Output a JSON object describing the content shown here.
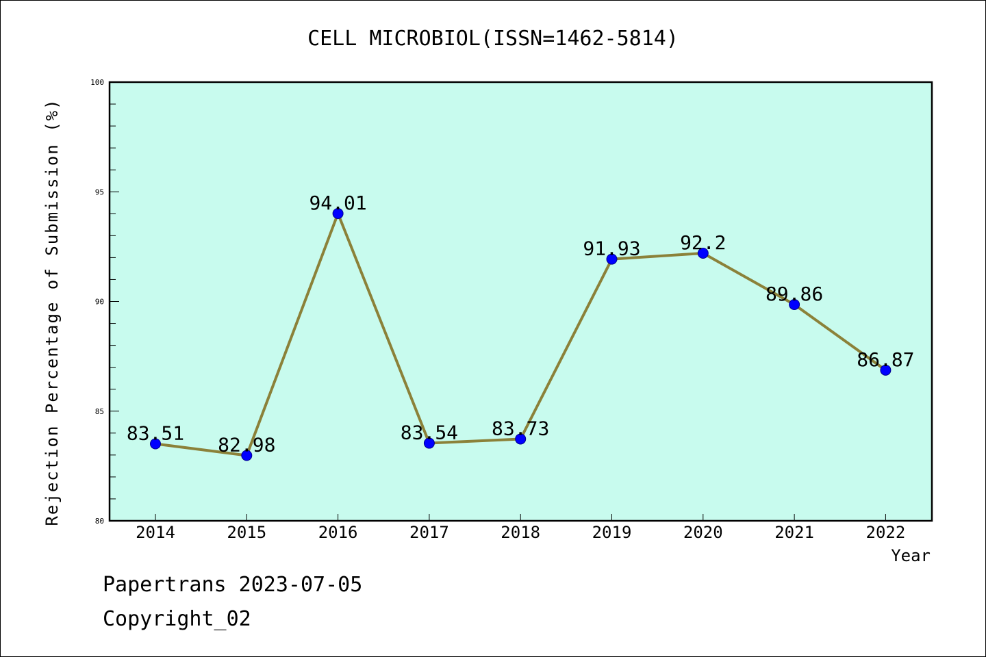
{
  "chart_data": {
    "type": "line",
    "title": "CELL MICROBIOL(ISSN=1462-5814)",
    "xlabel": "Year",
    "ylabel": "Rejection Percentage of Submission (%)",
    "categories": [
      "2014",
      "2015",
      "2016",
      "2017",
      "2018",
      "2019",
      "2020",
      "2021",
      "2022"
    ],
    "series": [
      {
        "name": "Rejection Percentage",
        "values": [
          83.51,
          82.98,
          94.01,
          83.54,
          83.73,
          91.93,
          92.2,
          89.86,
          86.87
        ],
        "labels": [
          "83.51",
          "82.98",
          "94.01",
          "83.54",
          "83.73",
          "91.93",
          "92.2",
          "89.86",
          "86.87"
        ]
      }
    ],
    "ylim": [
      80,
      100
    ],
    "yticks": [
      80,
      85,
      90,
      95,
      100
    ],
    "ytick_labels": [
      "80",
      "85",
      "90",
      "95",
      "100"
    ],
    "colors": {
      "plot_background": "#c8fbee",
      "line": "#8b8139",
      "marker": "#0000ff"
    }
  },
  "footer": {
    "line1": "Papertrans 2023-07-05",
    "line2": "Copyright_02"
  }
}
